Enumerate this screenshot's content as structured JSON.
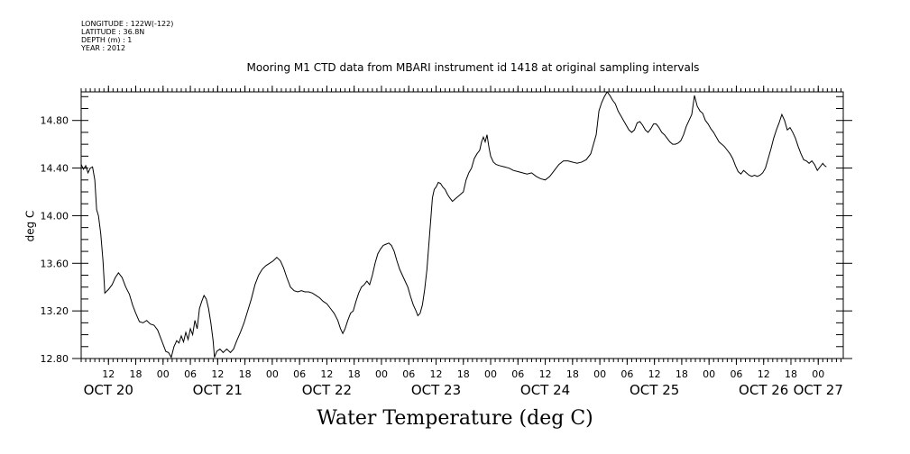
{
  "header": {
    "longitude": "LONGITUDE : 122W(-122)",
    "latitude": "LATITUDE : 36.8N",
    "depth": "DEPTH (m) : 1",
    "year": "YEAR : 2012"
  },
  "chart_data": {
    "type": "line",
    "title": "Mooring M1 CTD data from MBARI instrument id 1418 at original sampling intervals",
    "xlabel": "Water Temperature (deg C)",
    "ylabel": "deg C",
    "ylim": [
      12.8,
      15.04
    ],
    "yticks": [
      12.8,
      13.2,
      13.6,
      14.0,
      14.4,
      14.8
    ],
    "ytick_labels": [
      "12.80",
      "13.20",
      "13.60",
      "14.00",
      "14.40",
      "14.80"
    ],
    "x_unit": "hours since Oct 20 00:00, 2012",
    "xlim": [
      6.0,
      173.5
    ],
    "hour_ticks": [
      {
        "h": 12,
        "label": "12"
      },
      {
        "h": 18,
        "label": "18"
      },
      {
        "h": 24,
        "label": "00"
      },
      {
        "h": 30,
        "label": "06"
      },
      {
        "h": 36,
        "label": "12"
      },
      {
        "h": 42,
        "label": "18"
      },
      {
        "h": 48,
        "label": "00"
      },
      {
        "h": 54,
        "label": "06"
      },
      {
        "h": 60,
        "label": "12"
      },
      {
        "h": 66,
        "label": "18"
      },
      {
        "h": 72,
        "label": "00"
      },
      {
        "h": 78,
        "label": "06"
      },
      {
        "h": 84,
        "label": "12"
      },
      {
        "h": 90,
        "label": "18"
      },
      {
        "h": 96,
        "label": "00"
      },
      {
        "h": 102,
        "label": "06"
      },
      {
        "h": 108,
        "label": "12"
      },
      {
        "h": 114,
        "label": "18"
      },
      {
        "h": 120,
        "label": "00"
      },
      {
        "h": 126,
        "label": "06"
      },
      {
        "h": 132,
        "label": "12"
      },
      {
        "h": 138,
        "label": "18"
      },
      {
        "h": 144,
        "label": "00"
      },
      {
        "h": 150,
        "label": "06"
      },
      {
        "h": 156,
        "label": "12"
      },
      {
        "h": 162,
        "label": "18"
      },
      {
        "h": 168,
        "label": "00"
      },
      {
        "h": 174,
        "label": "06"
      }
    ],
    "day_labels": [
      {
        "h": 12,
        "label": "OCT 20"
      },
      {
        "h": 36,
        "label": "OCT 21"
      },
      {
        "h": 60,
        "label": "OCT 22"
      },
      {
        "h": 84,
        "label": "OCT 23"
      },
      {
        "h": 108,
        "label": "OCT 24"
      },
      {
        "h": 132,
        "label": "OCT 25"
      },
      {
        "h": 156,
        "label": "OCT 26"
      },
      {
        "h": 168,
        "label": "OCT 27"
      }
    ],
    "series": [
      {
        "values": [
          [
            6.0,
            14.43
          ],
          [
            6.5,
            14.39
          ],
          [
            7.0,
            14.42
          ],
          [
            7.5,
            14.36
          ],
          [
            8.0,
            14.4
          ],
          [
            8.5,
            14.41
          ],
          [
            9.0,
            14.3
          ],
          [
            9.4,
            14.05
          ],
          [
            9.8,
            14.0
          ],
          [
            10.3,
            13.85
          ],
          [
            10.8,
            13.62
          ],
          [
            11.2,
            13.35
          ],
          [
            12.0,
            13.38
          ],
          [
            12.8,
            13.42
          ],
          [
            13.5,
            13.48
          ],
          [
            14.2,
            13.52
          ],
          [
            15.0,
            13.48
          ],
          [
            15.8,
            13.4
          ],
          [
            16.6,
            13.34
          ],
          [
            17.3,
            13.25
          ],
          [
            18.0,
            13.18
          ],
          [
            18.8,
            13.11
          ],
          [
            19.6,
            13.1
          ],
          [
            20.4,
            13.12
          ],
          [
            21.2,
            13.09
          ],
          [
            22.0,
            13.08
          ],
          [
            22.8,
            13.04
          ],
          [
            23.4,
            12.98
          ],
          [
            24.0,
            12.92
          ],
          [
            24.6,
            12.86
          ],
          [
            25.2,
            12.85
          ],
          [
            25.8,
            12.81
          ],
          [
            26.4,
            12.9
          ],
          [
            27.0,
            12.95
          ],
          [
            27.5,
            12.93
          ],
          [
            28.0,
            12.99
          ],
          [
            28.5,
            12.94
          ],
          [
            29.0,
            13.02
          ],
          [
            29.5,
            12.96
          ],
          [
            30.0,
            13.05
          ],
          [
            30.5,
            13.0
          ],
          [
            31.0,
            13.12
          ],
          [
            31.5,
            13.05
          ],
          [
            32.0,
            13.22
          ],
          [
            32.5,
            13.28
          ],
          [
            33.0,
            13.33
          ],
          [
            33.5,
            13.3
          ],
          [
            34.0,
            13.22
          ],
          [
            34.5,
            13.1
          ],
          [
            35.0,
            12.95
          ],
          [
            35.3,
            12.81
          ],
          [
            35.8,
            12.86
          ],
          [
            36.5,
            12.88
          ],
          [
            37.2,
            12.85
          ],
          [
            38.0,
            12.88
          ],
          [
            38.8,
            12.85
          ],
          [
            39.5,
            12.88
          ],
          [
            40.2,
            12.95
          ],
          [
            41.0,
            13.02
          ],
          [
            41.8,
            13.1
          ],
          [
            42.6,
            13.2
          ],
          [
            43.4,
            13.3
          ],
          [
            44.2,
            13.42
          ],
          [
            45.0,
            13.5
          ],
          [
            45.8,
            13.55
          ],
          [
            46.6,
            13.58
          ],
          [
            47.4,
            13.6
          ],
          [
            48.2,
            13.62
          ],
          [
            49.0,
            13.65
          ],
          [
            49.8,
            13.62
          ],
          [
            50.5,
            13.56
          ],
          [
            51.2,
            13.48
          ],
          [
            52.0,
            13.4
          ],
          [
            52.8,
            13.37
          ],
          [
            53.6,
            13.36
          ],
          [
            54.4,
            13.37
          ],
          [
            55.2,
            13.36
          ],
          [
            56.0,
            13.36
          ],
          [
            56.8,
            13.35
          ],
          [
            57.6,
            13.33
          ],
          [
            58.4,
            13.31
          ],
          [
            59.2,
            13.28
          ],
          [
            60.0,
            13.26
          ],
          [
            60.8,
            13.22
          ],
          [
            61.6,
            13.18
          ],
          [
            62.4,
            13.12
          ],
          [
            63.0,
            13.05
          ],
          [
            63.5,
            13.01
          ],
          [
            64.0,
            13.05
          ],
          [
            64.6,
            13.12
          ],
          [
            65.2,
            13.18
          ],
          [
            65.8,
            13.2
          ],
          [
            66.4,
            13.28
          ],
          [
            67.0,
            13.35
          ],
          [
            67.6,
            13.4
          ],
          [
            68.2,
            13.42
          ],
          [
            68.8,
            13.45
          ],
          [
            69.4,
            13.42
          ],
          [
            70.0,
            13.5
          ],
          [
            70.6,
            13.6
          ],
          [
            71.2,
            13.68
          ],
          [
            71.8,
            13.72
          ],
          [
            72.4,
            13.75
          ],
          [
            73.0,
            13.76
          ],
          [
            73.6,
            13.77
          ],
          [
            74.2,
            13.75
          ],
          [
            74.8,
            13.7
          ],
          [
            75.4,
            13.62
          ],
          [
            76.0,
            13.55
          ],
          [
            76.6,
            13.5
          ],
          [
            77.2,
            13.45
          ],
          [
            77.8,
            13.4
          ],
          [
            78.4,
            13.32
          ],
          [
            79.0,
            13.25
          ],
          [
            79.6,
            13.2
          ],
          [
            80.0,
            13.16
          ],
          [
            80.5,
            13.18
          ],
          [
            81.0,
            13.25
          ],
          [
            81.5,
            13.38
          ],
          [
            82.0,
            13.55
          ],
          [
            82.4,
            13.75
          ],
          [
            82.8,
            13.95
          ],
          [
            83.2,
            14.15
          ],
          [
            83.6,
            14.22
          ],
          [
            84.0,
            14.24
          ],
          [
            84.5,
            14.28
          ],
          [
            85.0,
            14.27
          ],
          [
            85.5,
            14.24
          ],
          [
            86.0,
            14.22
          ],
          [
            86.5,
            14.18
          ],
          [
            87.0,
            14.15
          ],
          [
            87.6,
            14.12
          ],
          [
            88.2,
            14.14
          ],
          [
            88.8,
            14.16
          ],
          [
            89.4,
            14.18
          ],
          [
            90.0,
            14.2
          ],
          [
            90.6,
            14.3
          ],
          [
            91.2,
            14.36
          ],
          [
            91.8,
            14.4
          ],
          [
            92.4,
            14.48
          ],
          [
            93.0,
            14.52
          ],
          [
            93.6,
            14.55
          ],
          [
            94.0,
            14.62
          ],
          [
            94.4,
            14.66
          ],
          [
            94.8,
            14.62
          ],
          [
            95.2,
            14.68
          ],
          [
            95.6,
            14.58
          ],
          [
            96.0,
            14.5
          ],
          [
            96.6,
            14.45
          ],
          [
            97.2,
            14.43
          ],
          [
            98.0,
            14.42
          ],
          [
            99.0,
            14.41
          ],
          [
            100.0,
            14.4
          ],
          [
            101.0,
            14.38
          ],
          [
            102.0,
            14.37
          ],
          [
            103.0,
            14.36
          ],
          [
            104.0,
            14.35
          ],
          [
            105.0,
            14.36
          ],
          [
            106.0,
            14.33
          ],
          [
            107.0,
            14.31
          ],
          [
            108.0,
            14.3
          ],
          [
            109.0,
            14.33
          ],
          [
            110.0,
            14.38
          ],
          [
            111.0,
            14.43
          ],
          [
            112.0,
            14.46
          ],
          [
            113.0,
            14.46
          ],
          [
            114.0,
            14.45
          ],
          [
            115.0,
            14.44
          ],
          [
            116.0,
            14.45
          ],
          [
            117.0,
            14.47
          ],
          [
            118.0,
            14.52
          ],
          [
            118.6,
            14.6
          ],
          [
            119.2,
            14.68
          ],
          [
            119.8,
            14.88
          ],
          [
            120.4,
            14.95
          ],
          [
            121.0,
            15.0
          ],
          [
            121.6,
            15.04
          ],
          [
            122.2,
            15.01
          ],
          [
            122.8,
            14.97
          ],
          [
            123.4,
            14.94
          ],
          [
            124.0,
            14.88
          ],
          [
            124.6,
            14.84
          ],
          [
            125.2,
            14.8
          ],
          [
            125.8,
            14.76
          ],
          [
            126.4,
            14.72
          ],
          [
            127.0,
            14.7
          ],
          [
            127.6,
            14.72
          ],
          [
            128.2,
            14.78
          ],
          [
            128.8,
            14.79
          ],
          [
            129.4,
            14.76
          ],
          [
            130.0,
            14.72
          ],
          [
            130.6,
            14.7
          ],
          [
            131.2,
            14.73
          ],
          [
            131.8,
            14.77
          ],
          [
            132.4,
            14.77
          ],
          [
            133.0,
            14.74
          ],
          [
            133.6,
            14.7
          ],
          [
            134.2,
            14.68
          ],
          [
            134.8,
            14.65
          ],
          [
            135.4,
            14.62
          ],
          [
            136.0,
            14.6
          ],
          [
            136.6,
            14.6
          ],
          [
            137.2,
            14.61
          ],
          [
            137.8,
            14.63
          ],
          [
            138.4,
            14.68
          ],
          [
            139.0,
            14.75
          ],
          [
            139.6,
            14.8
          ],
          [
            140.2,
            14.85
          ],
          [
            140.8,
            15.01
          ],
          [
            141.4,
            14.92
          ],
          [
            142.0,
            14.88
          ],
          [
            142.6,
            14.86
          ],
          [
            143.2,
            14.8
          ],
          [
            143.8,
            14.77
          ],
          [
            144.4,
            14.73
          ],
          [
            145.0,
            14.7
          ],
          [
            145.6,
            14.66
          ],
          [
            146.2,
            14.62
          ],
          [
            146.8,
            14.6
          ],
          [
            147.4,
            14.58
          ],
          [
            148.0,
            14.55
          ],
          [
            148.6,
            14.52
          ],
          [
            149.2,
            14.48
          ],
          [
            149.8,
            14.42
          ],
          [
            150.4,
            14.37
          ],
          [
            151.0,
            14.35
          ],
          [
            151.6,
            14.38
          ],
          [
            152.2,
            14.36
          ],
          [
            152.8,
            14.34
          ],
          [
            153.4,
            14.33
          ],
          [
            154.0,
            14.34
          ],
          [
            154.6,
            14.33
          ],
          [
            155.2,
            14.34
          ],
          [
            155.8,
            14.36
          ],
          [
            156.4,
            14.4
          ],
          [
            157.0,
            14.48
          ],
          [
            157.6,
            14.56
          ],
          [
            158.2,
            14.65
          ],
          [
            158.8,
            14.72
          ],
          [
            159.4,
            14.78
          ],
          [
            160.0,
            14.85
          ],
          [
            160.6,
            14.8
          ],
          [
            161.2,
            14.72
          ],
          [
            161.8,
            14.74
          ],
          [
            162.4,
            14.7
          ],
          [
            163.0,
            14.65
          ],
          [
            163.6,
            14.58
          ],
          [
            164.2,
            14.52
          ],
          [
            164.8,
            14.47
          ],
          [
            165.4,
            14.46
          ],
          [
            166.0,
            14.44
          ],
          [
            166.6,
            14.46
          ],
          [
            167.2,
            14.43
          ],
          [
            167.8,
            14.38
          ],
          [
            168.4,
            14.41
          ],
          [
            169.0,
            14.44
          ],
          [
            169.4,
            14.42
          ],
          [
            169.8,
            14.41
          ]
        ]
      }
    ],
    "grid": false,
    "color": "#000000"
  }
}
